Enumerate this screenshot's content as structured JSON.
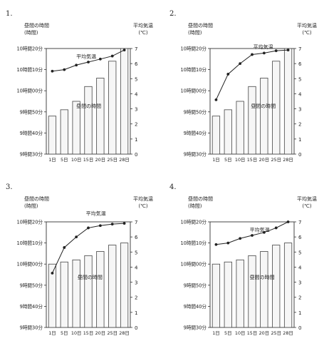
{
  "axis_labels": {
    "left_title": "昼間の時間",
    "left_unit": "(時間)",
    "right_title": "平均気温",
    "right_unit": "(℃)"
  },
  "chart_data": [
    {
      "number": "1.",
      "type": "bar+line",
      "categories": [
        "1日",
        "5日",
        "10日",
        "15日",
        "20日",
        "25日",
        "28日"
      ],
      "left_ticks": [
        "10時間20分",
        "10時間10分",
        "10時間00分",
        "9時間50分",
        "9時間40分",
        "9時間30分"
      ],
      "right_ticks": [
        "7",
        "6",
        "5",
        "4",
        "3",
        "2",
        "1",
        "0"
      ],
      "ylim_left_minutes": [
        570,
        620
      ],
      "ylim_right": [
        0,
        7
      ],
      "series": [
        {
          "name": "昼間の時間",
          "kind": "bar",
          "values_minutes": [
            588,
            591,
            595,
            602,
            606,
            614,
            620
          ]
        },
        {
          "name": "平均気温",
          "kind": "line",
          "values": [
            5.5,
            5.6,
            5.9,
            6.1,
            6.3,
            6.5,
            6.9
          ]
        }
      ],
      "bar_label_pos": [
        2.5,
        592
      ],
      "line_label_pos": [
        2.5,
        6.35
      ]
    },
    {
      "number": "2.",
      "type": "bar+line",
      "categories": [
        "1日",
        "5日",
        "10日",
        "15日",
        "20日",
        "25日",
        "28日"
      ],
      "left_ticks": [
        "10時間20分",
        "10時間10分",
        "10時間00分",
        "9時間50分",
        "9時間40分",
        "9時間30分"
      ],
      "right_ticks": [
        "7",
        "6",
        "5",
        "4",
        "3",
        "2",
        "1",
        "0"
      ],
      "ylim_left_minutes": [
        570,
        620
      ],
      "ylim_right": [
        0,
        7
      ],
      "series": [
        {
          "name": "昼間の時間",
          "kind": "bar",
          "values_minutes": [
            588,
            591,
            595,
            602,
            606,
            614,
            620
          ]
        },
        {
          "name": "平均気温",
          "kind": "line",
          "values": [
            3.6,
            5.3,
            6.0,
            6.6,
            6.7,
            6.85,
            6.9
          ]
        }
      ],
      "bar_label_pos": [
        3.4,
        592
      ],
      "line_label_pos": [
        3.6,
        7.0
      ]
    },
    {
      "number": "3.",
      "type": "bar+line",
      "categories": [
        "1日",
        "5日",
        "10日",
        "15日",
        "20日",
        "25日",
        "28日"
      ],
      "left_ticks": [
        "10時間20分",
        "10時間10分",
        "10時間00分",
        "9時間50分",
        "9時間40分",
        "9時間30分"
      ],
      "right_ticks": [
        "7",
        "6",
        "5",
        "4",
        "3",
        "2",
        "1",
        "0"
      ],
      "ylim_left_minutes": [
        570,
        620
      ],
      "ylim_right": [
        0,
        7
      ],
      "series": [
        {
          "name": "昼間の時間",
          "kind": "bar",
          "values_minutes": [
            600,
            601,
            602,
            604,
            606,
            609,
            610
          ]
        },
        {
          "name": "平均気温",
          "kind": "line",
          "values": [
            3.6,
            5.3,
            6.0,
            6.6,
            6.75,
            6.85,
            6.9
          ]
        }
      ],
      "bar_label_pos": [
        2.6,
        593
      ],
      "line_label_pos": [
        3.3,
        7.45
      ]
    },
    {
      "number": "4.",
      "type": "bar+line",
      "categories": [
        "1日",
        "5日",
        "10日",
        "15日",
        "20日",
        "25日",
        "28日"
      ],
      "left_ticks": [
        "10時間20分",
        "10時間10分",
        "10時間00分",
        "9時間50分",
        "9時間40分",
        "9時間30分"
      ],
      "right_ticks": [
        "7",
        "6",
        "5",
        "4",
        "3",
        "2",
        "1",
        "0"
      ],
      "ylim_left_minutes": [
        570,
        620
      ],
      "ylim_right": [
        0,
        7
      ],
      "series": [
        {
          "name": "昼間の時間",
          "kind": "bar",
          "values_minutes": [
            600,
            601,
            602,
            604,
            606,
            609,
            610
          ]
        },
        {
          "name": "平均気温",
          "kind": "line",
          "values": [
            5.5,
            5.6,
            5.9,
            6.1,
            6.3,
            6.6,
            7.0
          ]
        }
      ],
      "bar_label_pos": [
        3.3,
        593
      ],
      "line_label_pos": [
        3.3,
        6.35
      ]
    }
  ]
}
